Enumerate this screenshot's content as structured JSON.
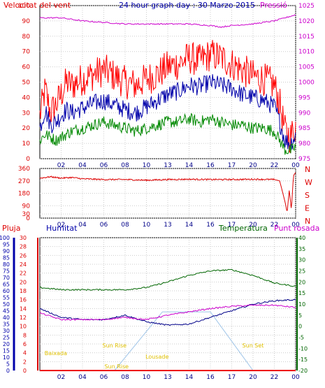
{
  "chart_data": [
    {
      "type": "line",
      "title": "24 hour graph day : 30 Marzo 2015",
      "left_axis_label": "Velocitat del vent",
      "right_axis_label": "Pressió",
      "x_ticks": [
        "02",
        "04",
        "06",
        "08",
        "10",
        "13",
        "14",
        "16",
        "17",
        "20",
        "22",
        "00"
      ],
      "ylim_left": [
        0,
        100
      ],
      "yticks_left": [
        0,
        10,
        20,
        30,
        40,
        50,
        60,
        70,
        80,
        90,
        100
      ],
      "ylim_right": [
        975,
        1025
      ],
      "yticks_right": [
        975,
        980,
        985,
        990,
        995,
        1000,
        1005,
        1010,
        1015,
        1020,
        1025
      ],
      "grid": true,
      "series": [
        {
          "axis": "left",
          "color": "#ff0000",
          "x_hours": [
            0,
            0.5,
            1,
            1.5,
            2,
            2.5,
            3,
            4,
            5,
            6,
            7,
            8,
            9,
            10,
            11,
            12,
            13,
            14,
            15,
            16,
            17,
            18,
            19,
            20,
            21,
            22,
            22.5,
            23,
            23.5,
            24
          ],
          "values": [
            28,
            45,
            30,
            35,
            42,
            50,
            48,
            52,
            55,
            58,
            54,
            50,
            48,
            52,
            55,
            60,
            62,
            66,
            64,
            68,
            66,
            62,
            58,
            54,
            52,
            48,
            36,
            18,
            14,
            22
          ]
        },
        {
          "axis": "left",
          "color": "#0000aa",
          "x_hours": [
            0,
            0.5,
            1,
            1.5,
            2,
            2.5,
            3,
            4,
            5,
            6,
            7,
            8,
            9,
            10,
            11,
            12,
            13,
            14,
            15,
            16,
            17,
            18,
            19,
            20,
            21,
            22,
            22.5,
            23,
            23.5,
            24
          ],
          "values": [
            20,
            32,
            22,
            24,
            28,
            32,
            30,
            33,
            36,
            38,
            35,
            32,
            30,
            34,
            38,
            42,
            44,
            48,
            47,
            50,
            48,
            46,
            42,
            40,
            38,
            34,
            24,
            12,
            10,
            15
          ]
        },
        {
          "axis": "left",
          "color": "#008800",
          "x_hours": [
            0,
            0.5,
            1,
            1.5,
            2,
            2.5,
            3,
            4,
            5,
            6,
            7,
            8,
            9,
            10,
            11,
            12,
            13,
            14,
            15,
            16,
            17,
            18,
            19,
            20,
            21,
            22,
            22.5,
            23,
            23.5,
            24
          ],
          "values": [
            12,
            16,
            14,
            12,
            14,
            16,
            18,
            20,
            22,
            24,
            22,
            20,
            18,
            20,
            22,
            24,
            24,
            26,
            24,
            26,
            24,
            22,
            22,
            20,
            20,
            18,
            12,
            6,
            5,
            8
          ]
        },
        {
          "axis": "right",
          "color": "#cc00cc",
          "x_hours": [
            0,
            2,
            4,
            6,
            8,
            10,
            12,
            14,
            16,
            17,
            18,
            20,
            22,
            23,
            24
          ],
          "values": [
            1021,
            1021,
            1020,
            1019.5,
            1019,
            1019,
            1019,
            1019,
            1018.5,
            1018,
            1018.5,
            1019,
            1020,
            1021,
            1022
          ]
        }
      ]
    },
    {
      "type": "line",
      "right_axis_label": "N W S E N",
      "x_ticks": [
        "02",
        "04",
        "06",
        "08",
        "10",
        "13",
        "14",
        "16",
        "17",
        "20",
        "22",
        "00"
      ],
      "ylim": [
        0,
        360
      ],
      "yticks": [
        0,
        30,
        90,
        180,
        270,
        360
      ],
      "grid": true,
      "series": [
        {
          "color": "#dd0000",
          "x_hours": [
            0,
            1,
            2,
            3,
            4,
            6,
            8,
            10,
            12,
            14,
            16,
            18,
            20,
            22,
            22.5,
            23,
            23.2,
            23.4,
            23.6,
            23.8,
            24
          ],
          "values": [
            290,
            300,
            290,
            295,
            285,
            280,
            280,
            275,
            280,
            282,
            280,
            280,
            282,
            280,
            270,
            120,
            40,
            200,
            60,
            310,
            330
          ]
        }
      ]
    },
    {
      "type": "line",
      "labels": {
        "rain": "Pluja",
        "humidity": "Humitat",
        "temperature": "Temperatura",
        "dewpoint": "Punt rosada"
      },
      "x_ticks": [
        "02",
        "04",
        "06",
        "08",
        "10",
        "13",
        "14",
        "16",
        "17",
        "20",
        "22",
        "00"
      ],
      "ylim_rain": [
        0,
        30
      ],
      "yticks_rain": [
        0,
        2,
        4,
        6,
        8,
        10,
        12,
        14,
        16,
        18,
        20,
        22,
        24,
        26,
        28,
        30
      ],
      "ylim_humidity": [
        0,
        100
      ],
      "yticks_humidity": [
        0,
        5,
        10,
        15,
        20,
        25,
        30,
        35,
        40,
        45,
        50,
        55,
        60,
        65,
        70,
        75,
        80,
        85,
        90,
        95,
        100
      ],
      "ylim_temp": [
        -20,
        40
      ],
      "yticks_temp": [
        -20,
        -15,
        -10,
        -5,
        0,
        5,
        10,
        15,
        20,
        25,
        30,
        35,
        40
      ],
      "grid": true,
      "series": [
        {
          "name": "Temperatura",
          "axis": "temp",
          "color": "#006600",
          "x_hours": [
            0,
            2,
            4,
            6,
            8,
            10,
            12,
            14,
            16,
            18,
            20,
            22,
            24
          ],
          "values": [
            17.5,
            16.5,
            16.5,
            16.5,
            16.5,
            17.5,
            20,
            23,
            25,
            25.5,
            23,
            19.5,
            18
          ]
        },
        {
          "name": "Humitat",
          "axis": "temp",
          "color": "#000088",
          "x_hours": [
            0,
            2,
            4,
            6,
            8,
            10,
            12,
            14,
            16,
            18,
            20,
            22,
            24
          ],
          "values": [
            8,
            4,
            3,
            3,
            5,
            2,
            0.5,
            1,
            4,
            7,
            10,
            11.5,
            12
          ]
        },
        {
          "name": "Punt rosada",
          "axis": "temp",
          "color": "#cc00cc",
          "x_hours": [
            0,
            2,
            4,
            6,
            8,
            10,
            12,
            14,
            16,
            18,
            20,
            22,
            24
          ],
          "values": [
            6,
            3,
            3,
            3,
            4,
            3,
            5,
            6.5,
            8,
            9,
            9.5,
            9.5,
            8.5
          ]
        },
        {
          "name": "Pluja",
          "axis": "rain",
          "color": "#ee0000",
          "x_hours": [
            0,
            24
          ],
          "values": [
            0,
            0
          ]
        }
      ],
      "sun_markers": [
        {
          "label": "Baixada",
          "hour": 1.5
        },
        {
          "label": "Sun Rise",
          "hour": 7
        },
        {
          "label": "Sun Rise",
          "hour": 7.2
        },
        {
          "label": "Lousade",
          "hour": 11
        },
        {
          "label": "Sun Set",
          "hour": 20
        }
      ]
    }
  ],
  "colors": {
    "wind": "#ff0000",
    "avg": "#0000aa",
    "gust": "#008800",
    "pressure": "#cc00cc",
    "winddir": "#dd0000"
  }
}
